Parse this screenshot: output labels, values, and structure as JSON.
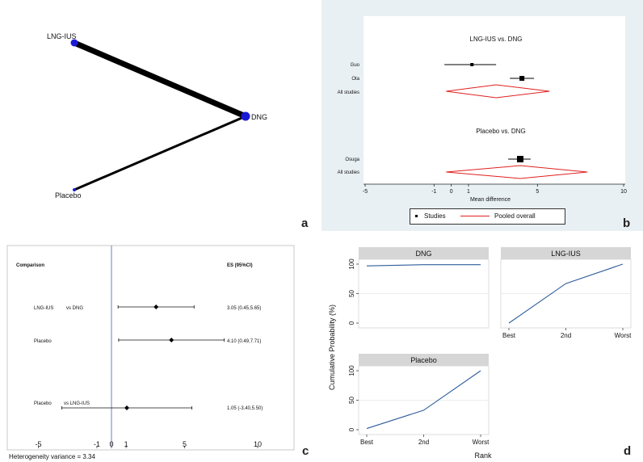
{
  "panel_labels": {
    "a": "a",
    "b": "b",
    "c": "c",
    "d": "d"
  },
  "network": {
    "nodes": [
      "LNG-IUS",
      "DNG",
      "Placebo"
    ],
    "edges": [
      {
        "from": "LNG-IUS",
        "to": "DNG",
        "weight": "thick"
      },
      {
        "from": "Placebo",
        "to": "DNG",
        "weight": "thin"
      }
    ],
    "node_color": "#1a1ad6"
  },
  "chart_data": [
    {
      "type": "forest",
      "panel": "b",
      "xlabel": "Mean difference",
      "xticks": [
        -5,
        -1,
        0,
        1,
        5,
        10
      ],
      "xlim": [
        -5,
        10
      ],
      "groups": [
        {
          "title": "LNG-IUS vs. DNG",
          "studies": [
            {
              "label": "Guo",
              "mean": 1.2,
              "lo": -0.4,
              "hi": 2.6,
              "weight": "small"
            },
            {
              "label": "Ota",
              "mean": 4.1,
              "lo": 3.4,
              "hi": 4.8,
              "weight": "medium"
            }
          ],
          "pooled": {
            "label": "All studies",
            "mean": 2.6,
            "lo": -0.3,
            "hi": 5.7
          }
        },
        {
          "title": "Placebo vs. DNG",
          "studies": [
            {
              "label": "Osuga",
              "mean": 4.0,
              "lo": 3.3,
              "hi": 4.6,
              "weight": "large"
            }
          ],
          "pooled": {
            "label": "All studies",
            "mean": 4.0,
            "lo": -0.3,
            "hi": 7.9
          }
        }
      ],
      "legend": [
        "Studies",
        "Pooled overall"
      ]
    },
    {
      "type": "forest",
      "panel": "c",
      "header_left": "Comparison",
      "header_right": "ES (95%CI)",
      "xticks": [
        -5,
        -1,
        0,
        1,
        5,
        10
      ],
      "xlim": [
        -7,
        12
      ],
      "rows": [
        {
          "label1": "LNG-IUS",
          "label2": "vs DNG",
          "es": 3.05,
          "lo": 0.45,
          "hi": 5.65,
          "text": "3.05 (0.45,5.65)"
        },
        {
          "label1": "Placebo",
          "label2": "",
          "es": 4.1,
          "lo": 0.49,
          "hi": 7.71,
          "text": "4.10 (0.49,7.71)"
        },
        {
          "label1": "Placebo",
          "label2": "vs LNG-IUS",
          "es": 1.05,
          "lo": -3.4,
          "hi": 5.5,
          "text": "1.05 (-3.40,5.50)"
        }
      ],
      "footer": "Heterogeneity variance = 3.34"
    },
    {
      "type": "line",
      "panel": "d",
      "ylabel": "Cumulative Probability (%)",
      "xlabel": "Rank",
      "categories": [
        "Best",
        "2nd",
        "Worst"
      ],
      "yticks": [
        0,
        50,
        100
      ],
      "ylim": [
        0,
        100
      ],
      "series": [
        {
          "name": "DNG",
          "values": [
            97,
            99,
            99
          ]
        },
        {
          "name": "LNG-IUS",
          "values": [
            0,
            67,
            100
          ]
        },
        {
          "name": "Placebo",
          "values": [
            2,
            33,
            100
          ]
        }
      ],
      "line_color": "#2f5d9b"
    }
  ]
}
